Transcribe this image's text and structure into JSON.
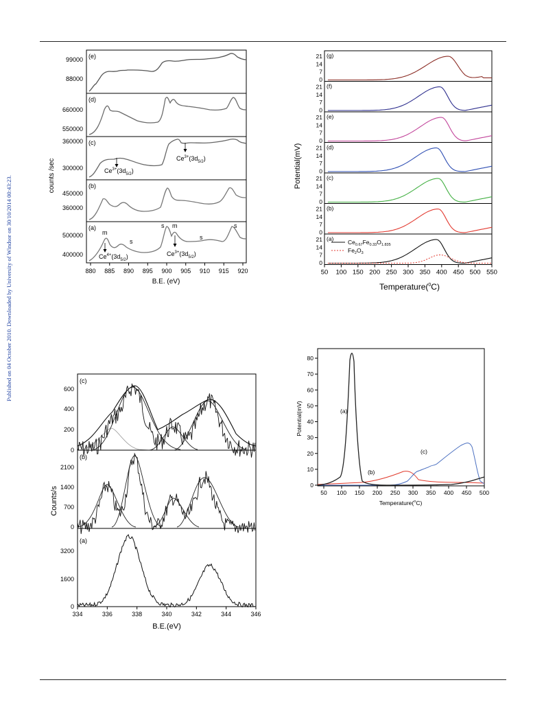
{
  "page": {
    "side_note": "Published on 04 October 2010. Downloaded by University of Windsor on 30/10/2014 00:43:23."
  },
  "fig_xps_ce": {
    "ylabel": "counts /sec",
    "xlabel": "B.E. (eV)",
    "xticks": [
      "880",
      "885",
      "890",
      "895",
      "900",
      "905",
      "910",
      "915",
      "920"
    ],
    "panels": [
      {
        "label": "(e)",
        "yticks": [
          "99000",
          "88000"
        ]
      },
      {
        "label": "(d)",
        "yticks": [
          "660000",
          "550000"
        ]
      },
      {
        "label": "(c)",
        "yticks": [
          "360000",
          "300000"
        ]
      },
      {
        "label": "(b)",
        "yticks": [
          "450000",
          "360000"
        ]
      },
      {
        "label": "(a)",
        "yticks": [
          "500000",
          "400000"
        ]
      }
    ],
    "peak_marks": [
      "m",
      "s",
      "s",
      "m",
      "s",
      "s"
    ],
    "ann": {
      "ce3_left_main": "Ce",
      "ce3_left_sup": "3+",
      "ce3_left_paren": "(3d",
      "ce3_left_sub": "5/2",
      "ce3_left_close": ")",
      "ce3_right_main": "Ce",
      "ce3_right_sup": "3+",
      "ce3_right_paren": "(3d",
      "ce3_right_sub": "5/2",
      "ce3_right_close": ")",
      "ce4_main": "Ce",
      "ce4_sup": "4+",
      "ce4_paren": "(3d",
      "ce4_sub": "5/2",
      "ce4_close": ")",
      "ce3_a_main": "Ce",
      "ce3_a_sup": "3+",
      "ce3_a_paren": "(3d",
      "ce3_a_sub": "5/2",
      "ce3_a_close": ")"
    }
  },
  "fig_tpr_stack": {
    "ylabel": "Potential(mV)",
    "xlabel_main": "Temperature(",
    "xlabel_sup": "0",
    "xlabel_end": "C)",
    "xticks": [
      "50",
      "100",
      "150",
      "200",
      "250",
      "300",
      "350",
      "400",
      "450",
      "500",
      "550"
    ],
    "yticks": [
      "21",
      "14",
      "7",
      "0"
    ],
    "panels": [
      "(g)",
      "(f)",
      "(e)",
      "(d)",
      "(c)",
      "(b)",
      "(a)"
    ],
    "colors": [
      "#8b2c24",
      "#2e2f8e",
      "#c2459b",
      "#2f4fb3",
      "#43b043",
      "#e23a30",
      "#111111"
    ],
    "legend": {
      "l1_main": "Ce",
      "l1_s1": "0.67",
      "l1_m2": "Fe",
      "l1_s2": "0.33",
      "l1_m3": "O",
      "l1_s3": "1.835",
      "l2_main": "Fe",
      "l2_s1": "2",
      "l2_m2": "O",
      "l2_s2": "3"
    }
  },
  "fig_xps_fe": {
    "ylabel": "Counts/s",
    "xlabel": "B.E.(eV)",
    "xticks": [
      "334",
      "336",
      "338",
      "340",
      "342",
      "344",
      "346"
    ],
    "panels": [
      {
        "label": "(c)",
        "yticks": [
          "600",
          "400",
          "200",
          "0"
        ]
      },
      {
        "label": "(b)",
        "yticks": [
          "2100",
          "1400",
          "700",
          "0"
        ]
      },
      {
        "label": "(a)",
        "yticks": [
          "3200",
          "1600",
          "0"
        ]
      }
    ]
  },
  "fig_tpr_single": {
    "ylabel": "Potential(mV)",
    "xlabel_main": "Temperature(",
    "xlabel_sup": "o",
    "xlabel_end": "C)",
    "xticks": [
      "50",
      "100",
      "150",
      "200",
      "250",
      "300",
      "350",
      "400",
      "450",
      "500"
    ],
    "yticks": [
      "80",
      "70",
      "60",
      "50",
      "40",
      "30",
      "20",
      "10",
      "0"
    ],
    "labels": [
      "(a)",
      "(b)",
      "(c)"
    ],
    "colors": [
      "#222222",
      "#e03a2c",
      "#4a6fc0"
    ]
  }
}
